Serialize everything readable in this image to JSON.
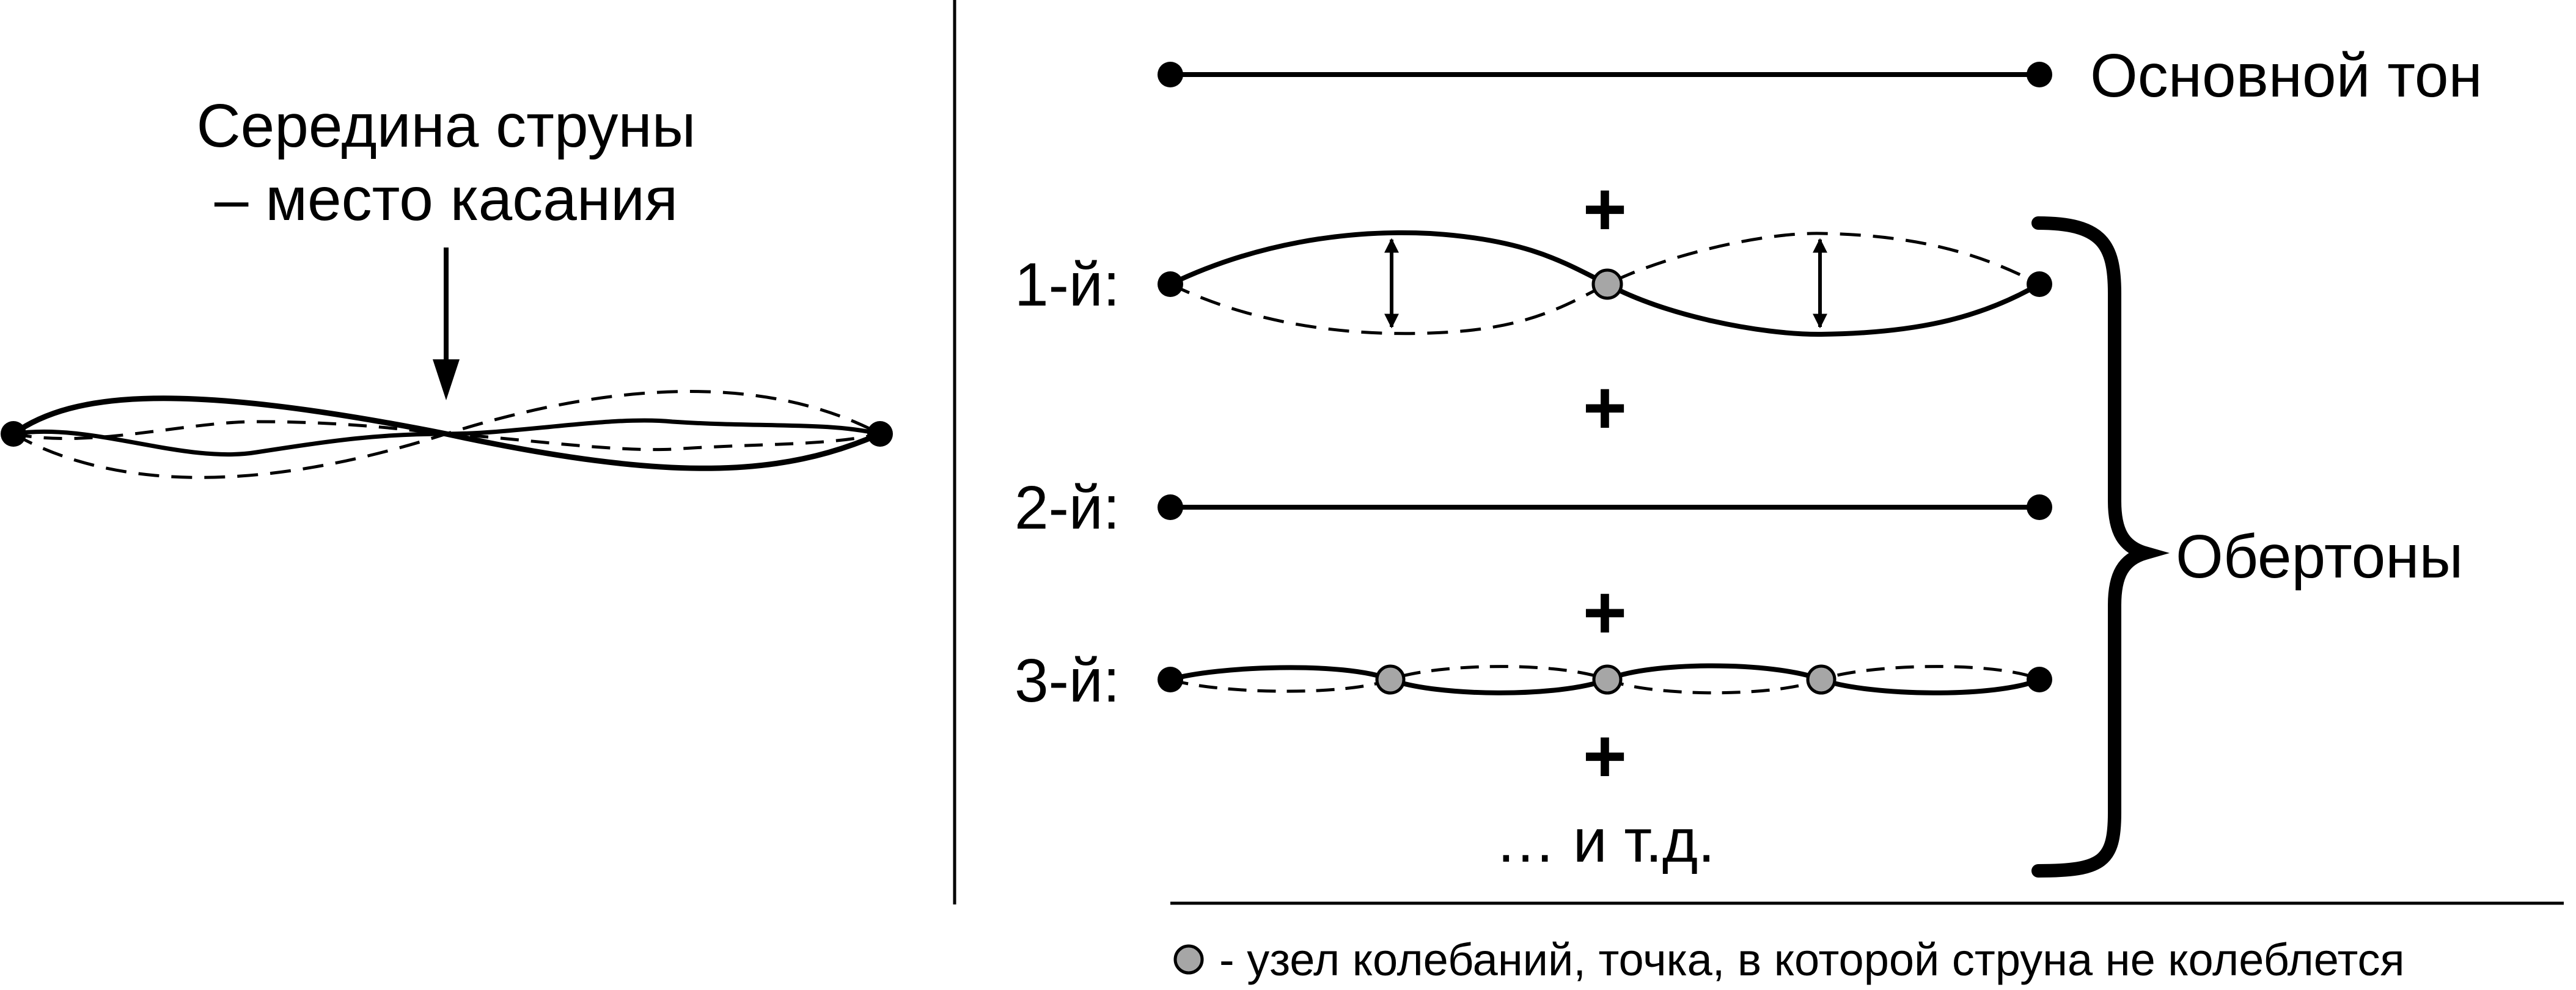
{
  "left_panel": {
    "caption_line1": "Середина струны",
    "caption_line2": "– место касания"
  },
  "right_panel": {
    "fundamental_label": "Основной тон",
    "overtones_label": "Обертоны",
    "harmonics": [
      {
        "label": "1-й:",
        "nodes": 1
      },
      {
        "label": "2-й:",
        "nodes": 0
      },
      {
        "label": "3-й:",
        "nodes": 3
      }
    ],
    "plus_sign": "+",
    "etc_label": "… и т.д."
  },
  "legend": {
    "text": "- узел колебаний, точка, в которой струна не колеблется"
  },
  "colors": {
    "line": "#000000",
    "node_fill": "#a6a6a6",
    "background": "#ffffff"
  }
}
